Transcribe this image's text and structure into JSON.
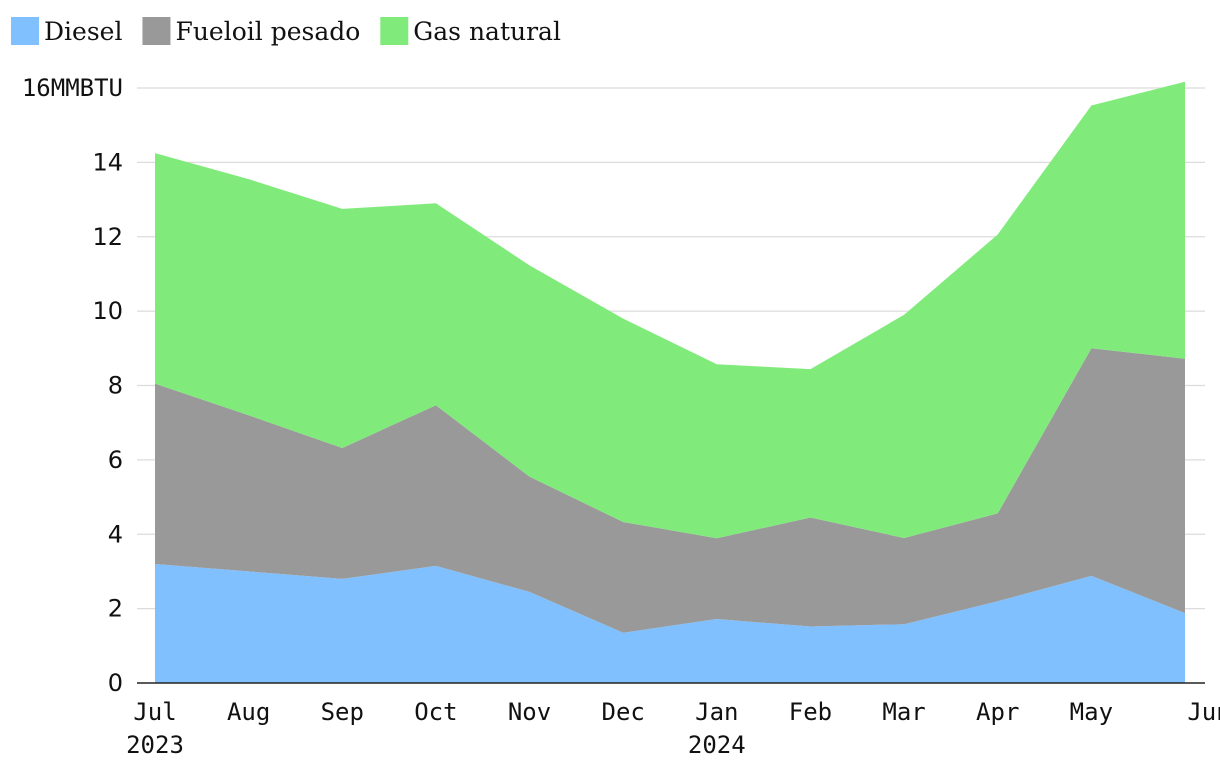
{
  "chart_data": {
    "type": "area",
    "stacked": true,
    "x": [
      "Jul",
      "Aug",
      "Sep",
      "Oct",
      "Nov",
      "Dec",
      "Jan",
      "Feb",
      "Mar",
      "Apr",
      "May",
      "Jun"
    ],
    "year_labels": [
      {
        "x": "Jul",
        "label": "2023"
      },
      {
        "x": "Jan",
        "label": "2024"
      }
    ],
    "series": [
      {
        "name": "Diesel",
        "color": "#80c0ff",
        "values": [
          3.2,
          3.0,
          2.8,
          3.15,
          2.45,
          1.35,
          1.72,
          1.52,
          1.58,
          2.2,
          2.88,
          1.88
        ]
      },
      {
        "name": "Fueloil pesado",
        "color": "#999999",
        "values": [
          4.85,
          4.2,
          3.52,
          4.32,
          3.1,
          2.98,
          2.17,
          2.93,
          2.32,
          2.36,
          6.12,
          6.84
        ]
      },
      {
        "name": "Gas natural",
        "color": "#80eb7b",
        "values": [
          6.2,
          6.35,
          6.43,
          5.43,
          5.68,
          5.47,
          4.68,
          3.99,
          6.0,
          7.5,
          6.53,
          7.45
        ]
      }
    ],
    "ylim": [
      0,
      16
    ],
    "yticks": [
      0,
      2,
      4,
      6,
      8,
      10,
      12,
      14,
      16
    ],
    "y_top_tick_label": "16MMBTU",
    "grid": true,
    "legend_position": "top-left"
  }
}
